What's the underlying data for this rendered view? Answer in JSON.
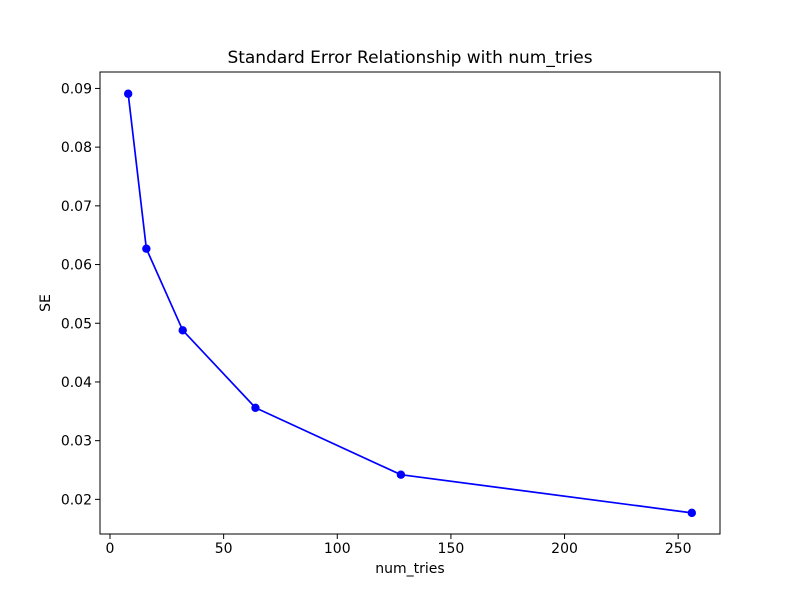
{
  "figure": {
    "background": "#ffffff",
    "text_color": "#000000",
    "spine_color": "#000000"
  },
  "chart_data": {
    "type": "line",
    "title": "Standard Error Relationship with num_tries",
    "xlabel": "num_tries",
    "ylabel": "SE",
    "x": [
      8,
      16,
      32,
      64,
      128,
      256
    ],
    "y": [
      0.0891,
      0.0627,
      0.0488,
      0.0356,
      0.0242,
      0.0177
    ],
    "line_color": "#0000ff",
    "marker": "o",
    "marker_color": "#0000ff",
    "xlim": [
      -4.4,
      268.4
    ],
    "ylim": [
      0.0141,
      0.0928
    ],
    "xticks": [
      0,
      50,
      100,
      150,
      200,
      250
    ],
    "xtick_labels": [
      "0",
      "50",
      "100",
      "150",
      "200",
      "250"
    ],
    "yticks": [
      0.02,
      0.03,
      0.04,
      0.05,
      0.06,
      0.07,
      0.08,
      0.09
    ],
    "ytick_labels": [
      "0.02",
      "0.03",
      "0.04",
      "0.05",
      "0.06",
      "0.07",
      "0.08",
      "0.09"
    ],
    "grid": false,
    "legend": false
  }
}
